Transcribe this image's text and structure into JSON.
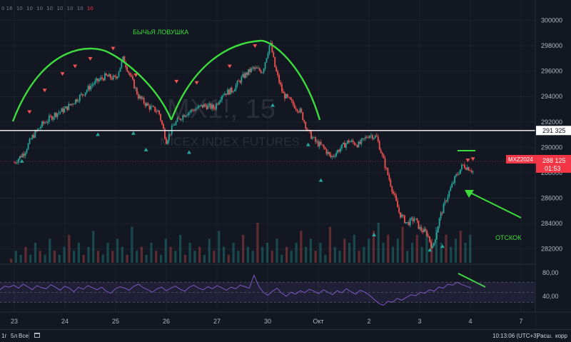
{
  "chart_data": [
    {
      "type": "candlestick",
      "title": "",
      "watermark": {
        "symbol": "MX1!, 15",
        "description": "MICEX INDEX FUTURES"
      },
      "x_ticks": [
        "23",
        "24",
        "25",
        "26",
        "27",
        "30",
        "Окт",
        "2",
        "3",
        "4",
        "7"
      ],
      "y_ticks": [
        300000,
        298000,
        296000,
        294000,
        292000,
        290000,
        288000,
        286000,
        284000,
        282000
      ],
      "ylim": [
        280800,
        301600
      ],
      "grid": true,
      "series": [
        {
          "name": "MXZ2024",
          "close_path": [
            [
              0.0,
              288800
            ],
            [
              0.2,
              289600
            ],
            [
              0.35,
              290800
            ],
            [
              0.55,
              291800
            ],
            [
              0.8,
              292600
            ],
            [
              1.0,
              293000
            ],
            [
              1.15,
              293500
            ],
            [
              1.35,
              294200
            ],
            [
              1.55,
              295000
            ],
            [
              1.8,
              295600
            ],
            [
              2.0,
              295400
            ],
            [
              2.15,
              297000
            ],
            [
              2.3,
              295500
            ],
            [
              2.45,
              294000
            ],
            [
              2.65,
              293200
            ],
            [
              2.85,
              292800
            ],
            [
              3.0,
              290500
            ],
            [
              3.15,
              291800
            ],
            [
              3.35,
              292600
            ],
            [
              3.55,
              293000
            ],
            [
              3.75,
              293300
            ],
            [
              3.95,
              293100
            ],
            [
              4.1,
              294200
            ],
            [
              4.3,
              294500
            ],
            [
              4.5,
              295500
            ],
            [
              4.7,
              296200
            ],
            [
              4.9,
              296000
            ],
            [
              5.0,
              297500
            ],
            [
              5.05,
              298300
            ],
            [
              5.15,
              296200
            ],
            [
              5.3,
              294200
            ],
            [
              5.45,
              293600
            ],
            [
              5.65,
              292800
            ],
            [
              5.8,
              291200
            ],
            [
              5.95,
              290400
            ],
            [
              6.1,
              290000
            ],
            [
              6.25,
              289200
            ],
            [
              6.4,
              289800
            ],
            [
              6.6,
              290500
            ],
            [
              6.8,
              290200
            ],
            [
              7.0,
              291000
            ],
            [
              7.15,
              290800
            ],
            [
              7.3,
              288800
            ],
            [
              7.45,
              286800
            ],
            [
              7.6,
              284800
            ],
            [
              7.75,
              284000
            ],
            [
              7.9,
              284400
            ],
            [
              8.0,
              283600
            ],
            [
              8.15,
              283200
            ],
            [
              8.25,
              282000
            ],
            [
              8.4,
              284500
            ],
            [
              8.55,
              286200
            ],
            [
              8.7,
              287600
            ],
            [
              8.85,
              288600
            ],
            [
              9.0,
              288300
            ],
            [
              9.05,
              288125
            ]
          ],
          "last_price": "288 125",
          "countdown": "01:53"
        }
      ],
      "reference_line": {
        "price": 291325,
        "label": "291 325"
      },
      "annotations": [
        {
          "text": "БЫЧЬЯ ЛОВУШКА",
          "color": "#3ddc3d"
        },
        {
          "text": "ОТСКОК",
          "color": "#3ddc3d"
        }
      ],
      "markers": {
        "up": [
          [
            0.15,
            288900
          ],
          [
            1.65,
            291000
          ],
          [
            2.35,
            291100
          ],
          [
            2.6,
            289800
          ],
          [
            3.45,
            289600
          ],
          [
            5.1,
            293300
          ],
          [
            5.8,
            290200
          ],
          [
            6.05,
            287400
          ],
          [
            7.1,
            283100
          ],
          [
            8.2,
            281900
          ],
          [
            8.45,
            282200
          ]
        ],
        "down": [
          [
            0.3,
            292800
          ],
          [
            0.6,
            294500
          ],
          [
            0.95,
            295800
          ],
          [
            1.2,
            296400
          ],
          [
            1.5,
            297000
          ],
          [
            1.95,
            297800
          ],
          [
            2.4,
            295700
          ],
          [
            3.2,
            295200
          ],
          [
            3.6,
            295100
          ],
          [
            4.25,
            296400
          ],
          [
            4.75,
            298000
          ],
          [
            8.95,
            289000
          ],
          [
            9.05,
            289100
          ]
        ]
      }
    },
    {
      "type": "line",
      "name": "RSI",
      "y_ticks": [
        "80,00",
        "40,00"
      ],
      "ylim": [
        15,
        100
      ],
      "band": [
        30,
        70
      ],
      "values": [
        55,
        62,
        60,
        64,
        58,
        66,
        61,
        55,
        63,
        59,
        57,
        65,
        60,
        54,
        62,
        58,
        51,
        60,
        56,
        63,
        59,
        55,
        60,
        52,
        48,
        57,
        61,
        58,
        54,
        62,
        66,
        59,
        55,
        50,
        57,
        60,
        53,
        58,
        62,
        56,
        52,
        60,
        64,
        58,
        55,
        61,
        57,
        63,
        59,
        54,
        60,
        57,
        64,
        61,
        58,
        84,
        62,
        50,
        44,
        52,
        58,
        48,
        42,
        50,
        46,
        53,
        49,
        56,
        52,
        47,
        55,
        50,
        45,
        53,
        49,
        57,
        51,
        46,
        54,
        50,
        44,
        36,
        28,
        24,
        32,
        30,
        38,
        34,
        40,
        45,
        43,
        50,
        48,
        55,
        52,
        60,
        58,
        66,
        64,
        70,
        65,
        62,
        58
      ]
    }
  ],
  "volume_profile": [
    1,
    3,
    2,
    4,
    2,
    5,
    3,
    2,
    6,
    3,
    2,
    4,
    7,
    3,
    5,
    2,
    4,
    8,
    3,
    2,
    5,
    3,
    6,
    4,
    2,
    9,
    3,
    4,
    2,
    5,
    3,
    2,
    6,
    4,
    3,
    7,
    2,
    5,
    3,
    4,
    2,
    6,
    3,
    8,
    4,
    2,
    5,
    3,
    7,
    4,
    3,
    10,
    4,
    5,
    3,
    6,
    2,
    4,
    3,
    5,
    8,
    4,
    6,
    3,
    5,
    2,
    9,
    4,
    3,
    6,
    5,
    7,
    3,
    4,
    6,
    8,
    10,
    5,
    7,
    4,
    6,
    9,
    3,
    5,
    7,
    4,
    8,
    6,
    9,
    5,
    7,
    4,
    6,
    8,
    5,
    7
  ],
  "colors": {
    "up": "#26a69a",
    "down": "#ef5350",
    "annotation": "#3ddc3d",
    "rsi": "#7e57c2",
    "price_tag": "#f23645",
    "ref_line": "#ffffff"
  },
  "top_legend": {
    "values": [
      "0 16",
      "10",
      "10",
      "10",
      "10",
      "10",
      "10",
      "10"
    ],
    "change": "10"
  },
  "bottom_bar": {
    "ranges": [
      "1г",
      "5л",
      "Все"
    ],
    "clock": "10:13:06 (UTC+3)",
    "log_label": "Расш.",
    "corr_label": "корр"
  }
}
